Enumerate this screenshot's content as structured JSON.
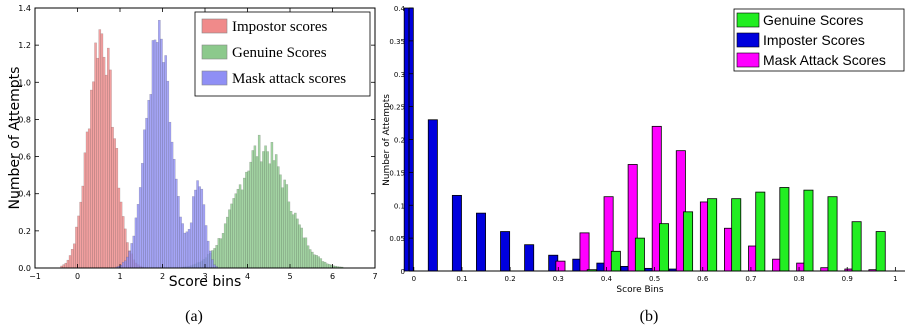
{
  "colors": {
    "impostor_a": "#f08a8a",
    "genuine_a": "#8cc98c",
    "mask_a": "#8f8ff5",
    "genuine_b": "#22ee22",
    "imposter_b": "#0000dd",
    "mask_b": "#ff00ff"
  },
  "chart_data": [
    {
      "type": "bar",
      "caption": "(a)",
      "xlabel": "Score bins",
      "ylabel": "Number of Attempts",
      "xlim": [
        -1,
        7
      ],
      "ylim": [
        0,
        1.4
      ],
      "xticks": [
        "−1",
        "0",
        "1",
        "2",
        "3",
        "4",
        "5",
        "6",
        "7"
      ],
      "yticks": [
        "0.0",
        "0.2",
        "0.4",
        "0.6",
        "0.8",
        "1.0",
        "1.2",
        "1.4"
      ],
      "legend_position": "top-right",
      "grid": false,
      "series": [
        {
          "name": "Impostor scores",
          "color": "#f08a8a",
          "distribution": "normal",
          "mean": 0.55,
          "peak": 1.27,
          "sd": 0.3,
          "histogram_range": [
            -0.4,
            1.6
          ],
          "bin_width": 0.05
        },
        {
          "name": "Genuine Scores",
          "color": "#8cc98c",
          "distribution": "normal",
          "mean": 4.35,
          "peak": 0.65,
          "sd": 0.6,
          "histogram_range": [
            1.8,
            6.4
          ],
          "bin_width": 0.05
        },
        {
          "name": "Mask attack scores",
          "color": "#8f8ff5",
          "distribution": "bimodal-normal",
          "components": [
            {
              "mean": 1.9,
              "peak": 1.22,
              "sd": 0.3
            },
            {
              "mean": 2.85,
              "peak": 0.45,
              "sd": 0.15
            }
          ],
          "histogram_range": [
            0.2,
            3.3
          ],
          "bin_width": 0.05
        }
      ]
    },
    {
      "type": "bar",
      "caption": "(b)",
      "xlabel": "Score Bins",
      "ylabel": "Number of Attempts",
      "xlim": [
        -0.01,
        1.02
      ],
      "ylim": [
        0,
        0.4
      ],
      "xticks": [
        "0",
        "0.1",
        "0.2",
        "0.3",
        "0.4",
        "0.5",
        "0.6",
        "0.7",
        "0.8",
        "0.9",
        "1"
      ],
      "yticks": [
        "0",
        "0.05",
        "0.1",
        "0.15",
        "0.2",
        "0.25",
        "0.3",
        "0.35",
        "0.4"
      ],
      "legend_position": "top-right",
      "grid": false,
      "bin_width": 0.05,
      "x": [
        0,
        0.05,
        0.1,
        0.15,
        0.2,
        0.25,
        0.3,
        0.35,
        0.4,
        0.45,
        0.5,
        0.55,
        0.6,
        0.65,
        0.7,
        0.75,
        0.8,
        0.85,
        0.9,
        0.95,
        1.0
      ],
      "series": [
        {
          "name": "Genuine Scores",
          "color": "#22ee22",
          "values": [
            0,
            0,
            0,
            0,
            0,
            0,
            0,
            0.002,
            0.03,
            0.05,
            0.072,
            0.09,
            0.11,
            0.11,
            0.12,
            0.127,
            0.123,
            0.113,
            0.075,
            0.06,
            0
          ]
        },
        {
          "name": "Imposter Scores",
          "color": "#0000dd",
          "values": [
            0.4,
            0.23,
            0.115,
            0.088,
            0.06,
            0.04,
            0.024,
            0.018,
            0.012,
            0.007,
            0.004,
            0.003,
            0,
            0,
            0,
            0,
            0,
            0,
            0,
            0,
            0
          ]
        },
        {
          "name": "Mask Attack Scores",
          "color": "#ff00ff",
          "values": [
            0,
            0,
            0,
            0,
            0,
            0,
            0.015,
            0.058,
            0.113,
            0.162,
            0.22,
            0.183,
            0.105,
            0.065,
            0.038,
            0.018,
            0.012,
            0.005,
            0.003,
            0.002,
            0
          ]
        }
      ]
    }
  ]
}
